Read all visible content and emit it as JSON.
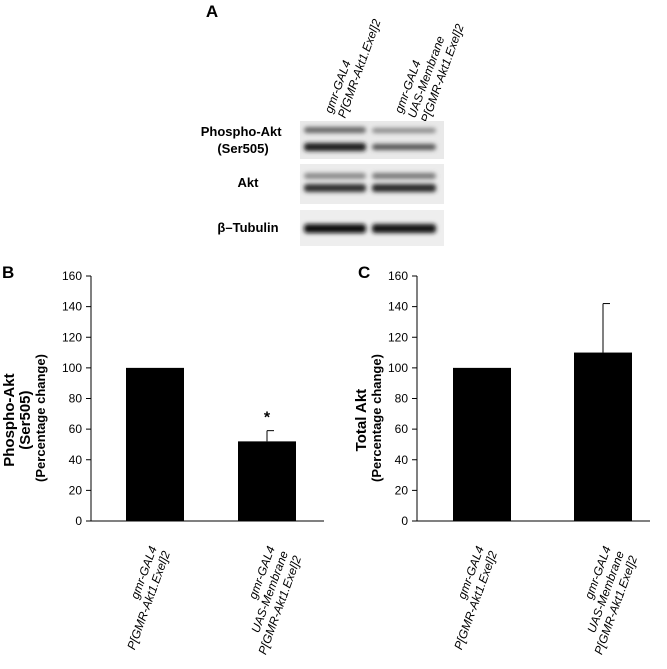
{
  "panel_letters": [
    "A",
    "B",
    "C"
  ],
  "blot": {
    "lanes": [
      {
        "lines": [
          "gmr-GAL4",
          "P[GMR-Akt1.Exel]2"
        ]
      },
      {
        "lines": [
          "gmr-GAL4",
          "UAS-Membrane",
          "P[GMR-Akt1.Exel]2"
        ]
      }
    ],
    "rows": [
      {
        "label_lines": [
          "Phospho-Akt",
          "(Ser505)"
        ]
      },
      {
        "label_lines": [
          "Akt"
        ]
      },
      {
        "label_lines": [
          "β–Tubulin"
        ]
      }
    ]
  },
  "chart_data": [
    {
      "type": "bar",
      "panel": "B",
      "categories": [
        [
          "gmr-GAL4",
          "P[GMR-Akt1.Exel]2"
        ],
        [
          "gmr-GAL4",
          "UAS-Membrane",
          "P[GMR-Akt1.Exel]2"
        ]
      ],
      "values": [
        100,
        52
      ],
      "error": [
        0,
        7
      ],
      "annotations": [
        "",
        "*"
      ],
      "ylabel_lines": [
        "Phospho-Akt",
        "(Ser505)",
        "(Percentage change)"
      ],
      "ylim": [
        0,
        160
      ],
      "yticks": [
        0,
        20,
        40,
        60,
        80,
        100,
        120,
        140,
        160
      ],
      "color": "#000000",
      "grid": false
    },
    {
      "type": "bar",
      "panel": "C",
      "categories": [
        [
          "gmr-GAL4",
          "P[GMR-Akt1.Exel]2"
        ],
        [
          "gmr-GAL4",
          "UAS-Membrane",
          "P[GMR-Akt1.Exel]2"
        ]
      ],
      "values": [
        100,
        110
      ],
      "error": [
        0,
        32
      ],
      "annotations": [
        "",
        ""
      ],
      "ylabel_lines": [
        "Total Akt",
        "(Percentage change)"
      ],
      "ylim": [
        0,
        160
      ],
      "yticks": [
        0,
        20,
        40,
        60,
        80,
        100,
        120,
        140,
        160
      ],
      "color": "#000000",
      "grid": false
    }
  ]
}
